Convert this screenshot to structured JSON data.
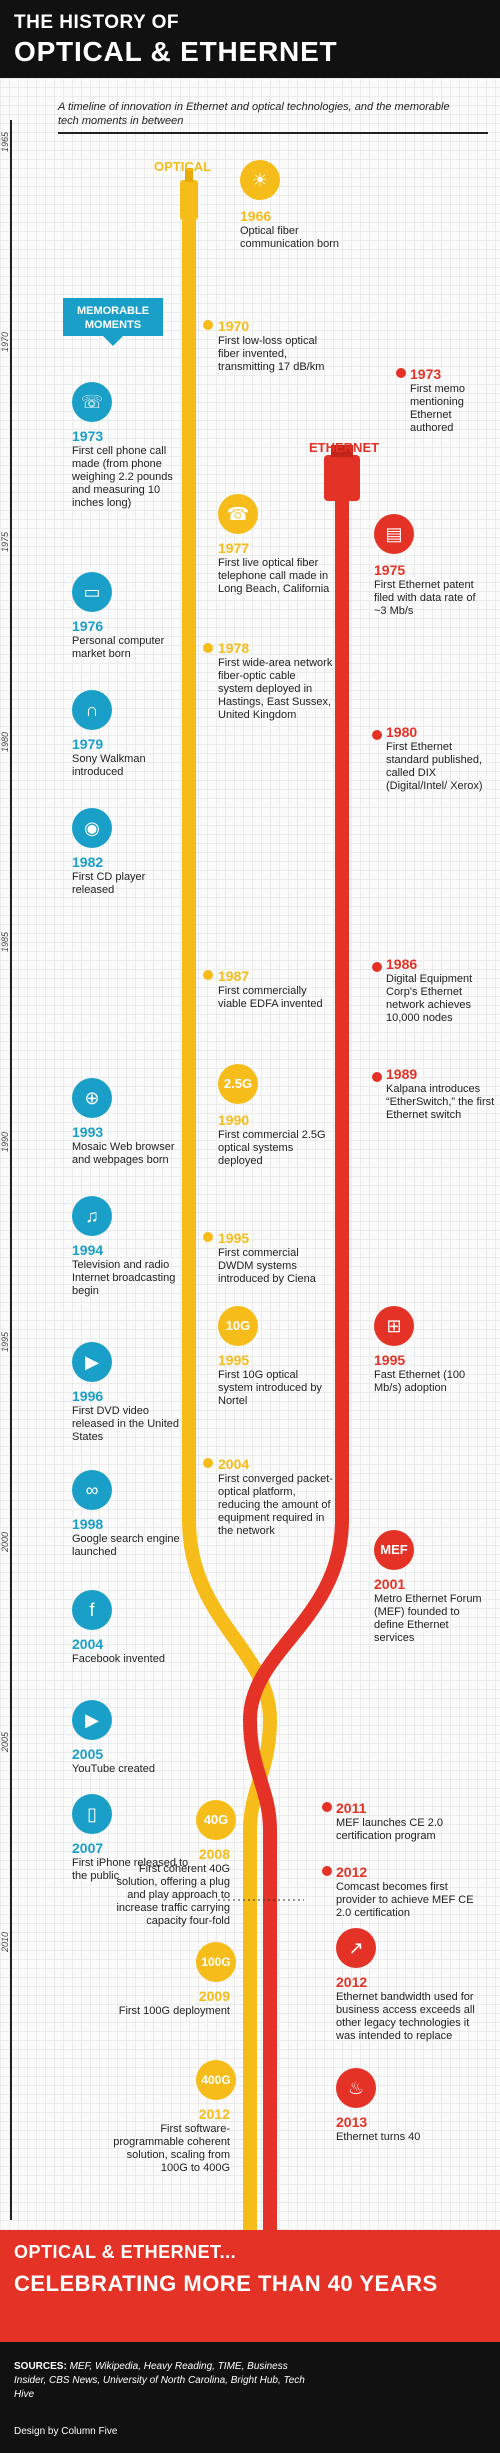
{
  "header": {
    "title_small": "THE HISTORY OF",
    "title_large": "OPTICAL & ETHERNET"
  },
  "intro": {
    "text": "A timeline of innovation in Ethernet and optical technologies, and the memorable tech moments in between"
  },
  "labels": {
    "optical": "OPTICAL",
    "ethernet": "ETHERNET",
    "memorable": "MEMORABLE MOMENTS"
  },
  "ruler_years": [
    "1965",
    "1970",
    "1975",
    "1980",
    "1985",
    "1990",
    "1995",
    "2000",
    "2005",
    "2010"
  ],
  "colors": {
    "optical": "#f6bd1a",
    "ethernet": "#e53226",
    "memorable": "#1aa0c8",
    "header_bg": "#111111"
  },
  "memorable": [
    {
      "year": "1973",
      "text": "First cell phone call made (from phone weighing 2.2 pounds and measuring 10 inches long)",
      "icon": "cell-phone-icon"
    },
    {
      "year": "1976",
      "text": "Personal computer market born",
      "icon": "computer-icon"
    },
    {
      "year": "1979",
      "text": "Sony Walkman introduced",
      "icon": "headphones-icon"
    },
    {
      "year": "1982",
      "text": "First CD player released",
      "icon": "cd-icon"
    },
    {
      "year": "1993",
      "text": "Mosaic Web browser and webpages born",
      "icon": "globe-icon"
    },
    {
      "year": "1994",
      "text": "Television and radio Internet broadcasting begin",
      "icon": "music-note-icon"
    },
    {
      "year": "1996",
      "text": "First DVD video released in the United States",
      "icon": "play-icon"
    },
    {
      "year": "1998",
      "text": "Google search engine launched",
      "icon": "binoculars-icon"
    },
    {
      "year": "2004",
      "text": "Facebook invented",
      "icon": "facebook-icon"
    },
    {
      "year": "2005",
      "text": "YouTube created",
      "icon": "youtube-icon"
    },
    {
      "year": "2007",
      "text": "First iPhone released to the public",
      "icon": "smartphone-icon"
    }
  ],
  "optical": [
    {
      "year": "1966",
      "text": "Optical fiber communication born",
      "icon": "light-bulb-icon"
    },
    {
      "year": "1970",
      "text": "First low-loss optical fiber invented, transmitting 17 dB/km"
    },
    {
      "year": "1977",
      "text": "First live optical fiber telephone call made in Long Beach, California",
      "icon": "telephone-icon"
    },
    {
      "year": "1978",
      "text": "First wide-area network fiber-optic cable system deployed in Hastings, East Sussex, United Kingdom"
    },
    {
      "year": "1987",
      "text": "First commercially viable EDFA invented"
    },
    {
      "year": "1990",
      "text": "First commercial 2.5G optical systems deployed",
      "badge": "2.5G"
    },
    {
      "year": "1995",
      "text": "First commercial DWDM systems introduced by Ciena"
    },
    {
      "year": "1995",
      "text": "First 10G optical system introduced by Nortel",
      "badge": "10G"
    },
    {
      "year": "2004",
      "text": "First converged packet-optical platform, reducing the amount of equipment required in the network"
    },
    {
      "year": "2008",
      "text": "First coherent 40G solution, offering a plug and play approach to increase traffic carrying capacity four-fold",
      "badge": "40G"
    },
    {
      "year": "2009",
      "text": "First 100G deployment",
      "badge": "100G"
    },
    {
      "year": "2012",
      "text": "First software-programmable coherent solution, scaling from 100G to 400G",
      "badge": "400G"
    }
  ],
  "ethernet": [
    {
      "year": "1973",
      "text": "First memo mentioning Ethernet authored"
    },
    {
      "year": "1975",
      "text": "First Ethernet patent filed with data rate of ~3 Mb/s",
      "icon": "document-icon"
    },
    {
      "year": "1980",
      "text": "First Ethernet standard published, called DIX (Digital/Intel/ Xerox)"
    },
    {
      "year": "1986",
      "text": "Digital Equipment Corp's Ethernet network achieves 10,000 nodes"
    },
    {
      "year": "1989",
      "text": "Kalpana introduces “EtherSwitch,” the first Ethernet switch"
    },
    {
      "year": "1995",
      "text": "Fast Ethernet (100 Mb/s) adoption",
      "icon": "network-switch-icon"
    },
    {
      "year": "2001",
      "text": "Metro Ethernet Forum (MEF) founded to define Ethernet services",
      "badge": "MEF"
    },
    {
      "year": "2011",
      "text": "MEF launches CE 2.0 certification program"
    },
    {
      "year": "2012",
      "text": "Comcast becomes first provider to achieve MEF CE 2.0 certification"
    },
    {
      "year": "2012",
      "text": "Ethernet bandwidth used for business access exceeds all other legacy technologies it was intended to replace",
      "icon": "growth-chart-icon"
    },
    {
      "year": "2013",
      "text": "Ethernet turns 40",
      "icon": "birthday-cake-icon"
    }
  ],
  "footer": {
    "line1": "OPTICAL & ETHERNET...",
    "line2": "CELEBRATING MORE THAN 40 YEARS",
    "sources_label": "SOURCES:",
    "sources": "MEF, Wikipedia, Heavy Reading, TIME, Business Insider, CBS News, University of North Carolina, Bright Hub, Tech Hive",
    "design": "Design by Column Five"
  }
}
